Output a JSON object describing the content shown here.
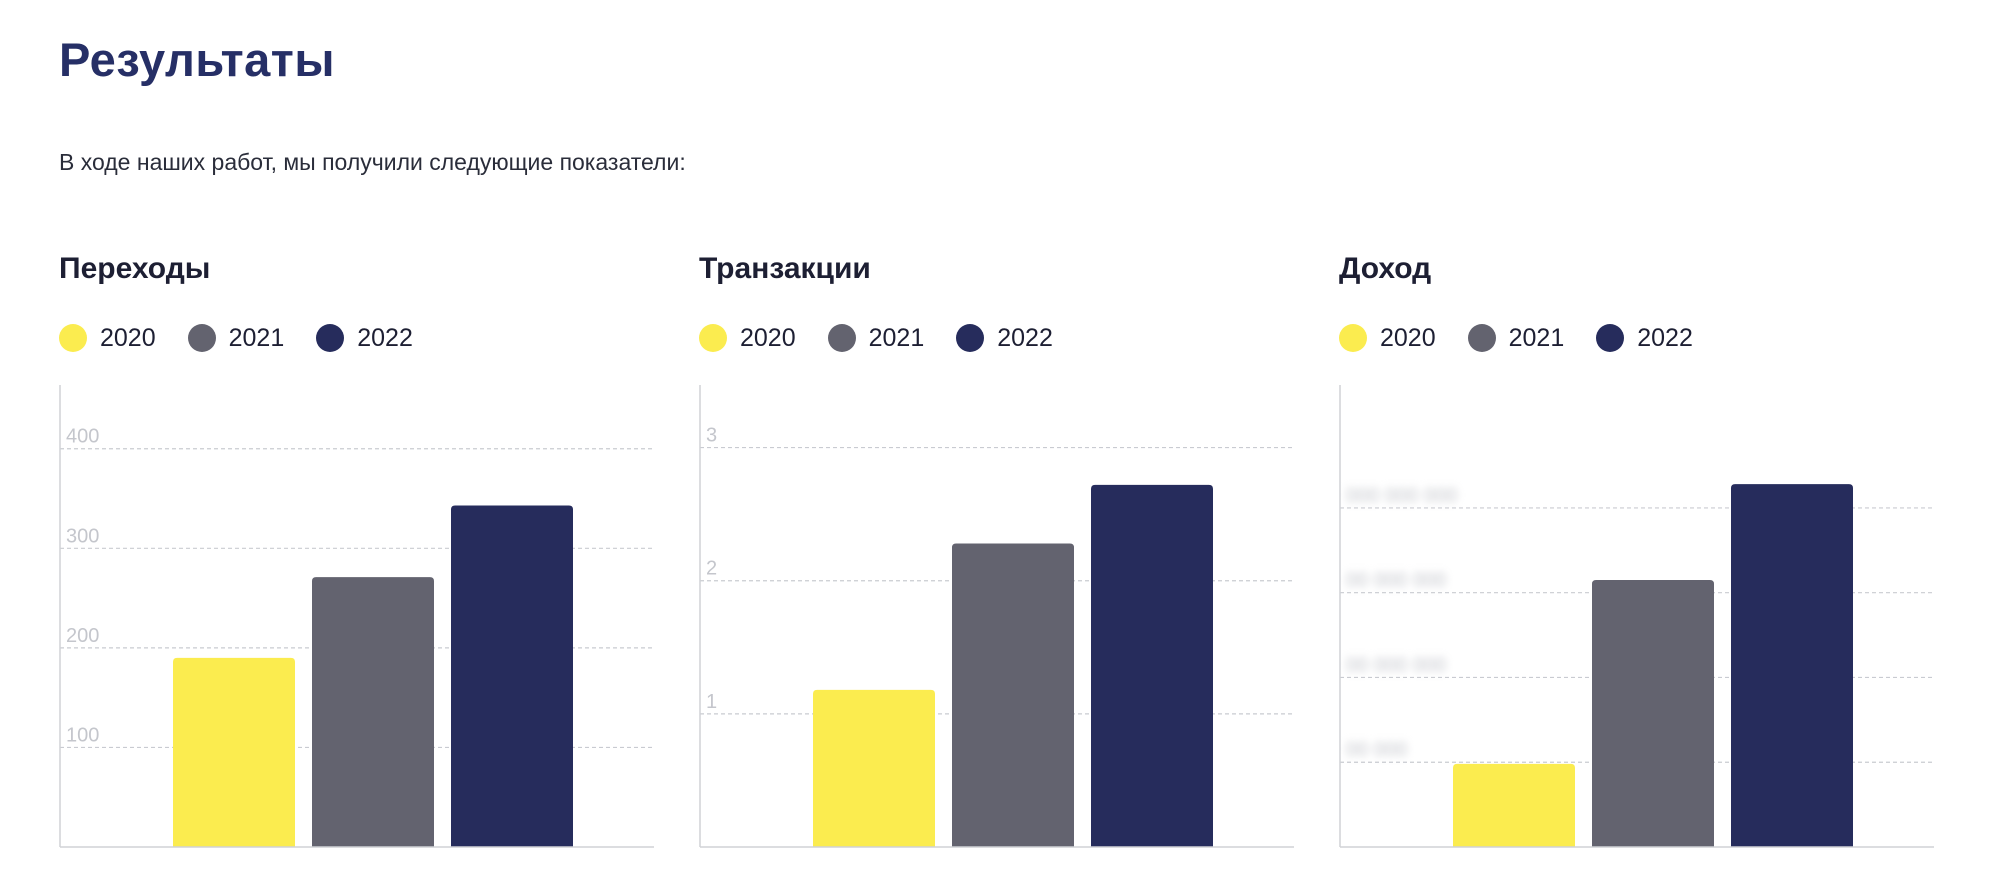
{
  "page": {
    "title": "Результаты",
    "subtitle": "В ходе наших работ, мы получили следующие показатели:"
  },
  "colors": {
    "2020": "#fbec4f",
    "2021": "#63636f",
    "2022": "#262c5c",
    "grid": "#c9cbd1",
    "axis": "#d0d2d6",
    "tick": "#c4c6cc"
  },
  "chart_data": [
    {
      "type": "bar",
      "title": "Переходы",
      "categories": [
        "2020",
        "2021",
        "2022"
      ],
      "legend": [
        "2020",
        "2021",
        "2022"
      ],
      "values": [
        190,
        271,
        343
      ],
      "ylim": [
        0,
        464
      ],
      "yticks": [
        100,
        200,
        300,
        400
      ],
      "ytick_labels": [
        "100",
        "200",
        "300",
        "400"
      ],
      "tick_labels_blurred": false,
      "grid": true
    },
    {
      "type": "bar",
      "title": "Транзакции",
      "categories": [
        "2020",
        "2021",
        "2022"
      ],
      "legend": [
        "2020",
        "2021",
        "2022"
      ],
      "values": [
        1.18,
        2.28,
        2.72
      ],
      "ylim": [
        0,
        3.47
      ],
      "yticks": [
        1,
        2,
        3
      ],
      "ytick_labels": [
        "1",
        "2",
        "3"
      ],
      "tick_labels_blurred": false,
      "grid": true
    },
    {
      "type": "bar",
      "title": "Доход",
      "categories": [
        "2020",
        "2021",
        "2022"
      ],
      "legend": [
        "2020",
        "2021",
        "2022"
      ],
      "values": [
        98,
        315,
        428
      ],
      "ylim": [
        0,
        545
      ],
      "yticks": [
        100,
        200,
        300,
        400
      ],
      "ytick_labels": [
        "00 000",
        "00 000 000",
        "00 000 000",
        "000 000 000"
      ],
      "tick_labels_blurred": true,
      "grid": true
    }
  ]
}
